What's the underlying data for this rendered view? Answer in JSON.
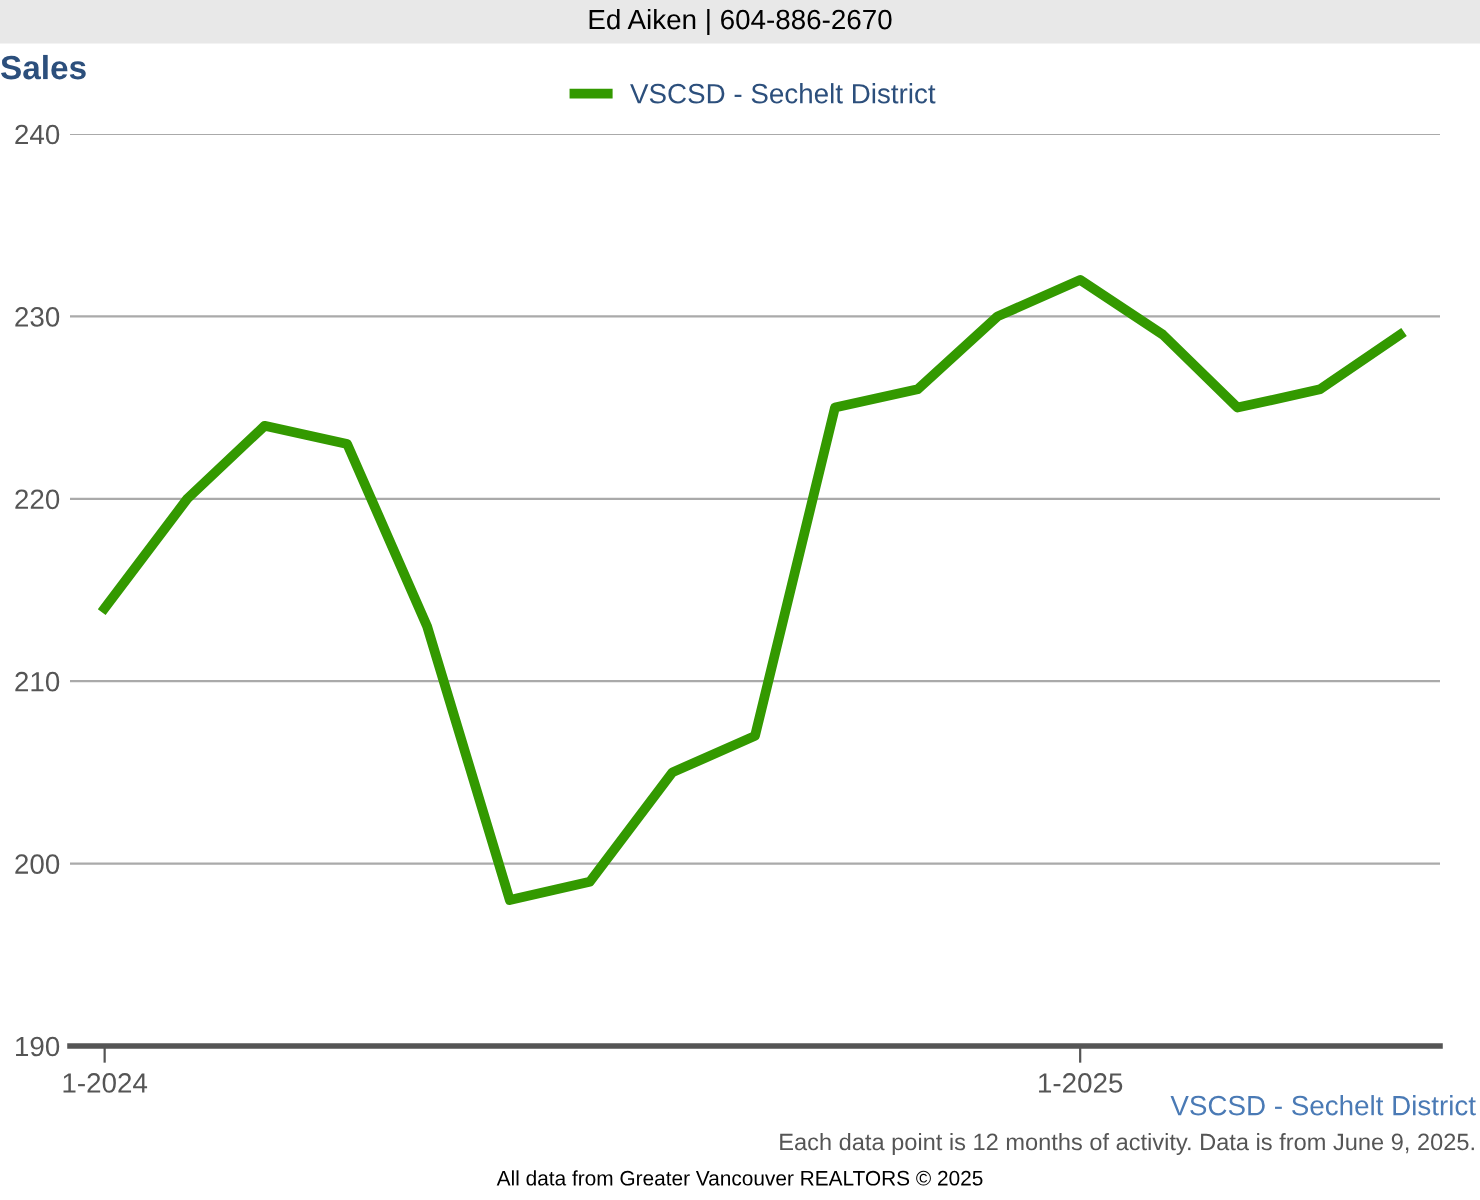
{
  "chart_data": {
    "type": "line",
    "title": "Sales",
    "x": [
      "2024-01",
      "2024-02",
      "2024-03",
      "2024-04",
      "2024-05",
      "2024-06",
      "2024-07",
      "2024-08",
      "2024-09",
      "2024-10",
      "2024-11",
      "2024-12",
      "2025-01",
      "2025-02",
      "2025-03",
      "2025-04",
      "2025-05"
    ],
    "series": [
      {
        "name": "VSCSD - Sechelt District",
        "color": "#339900",
        "values": [
          214,
          220,
          224,
          223,
          213,
          198,
          199,
          205,
          207,
          225,
          226,
          230,
          232,
          229,
          225,
          226,
          229
        ]
      }
    ],
    "xlim": [
      "2023-12-19",
      "2025-05-16"
    ],
    "xticks": [
      {
        "value": "2024-01",
        "label": "1-2024"
      },
      {
        "value": "2025-01",
        "label": "1-2025"
      }
    ],
    "ylim": [
      190,
      240
    ],
    "yticks": [
      190,
      200,
      210,
      220,
      230,
      240
    ],
    "grid": "y",
    "legend": "top",
    "marker": "none",
    "line_style": "solid",
    "annotations": [
      "Ed Aiken | 604-886-2670",
      "VSCSD - Sechelt District",
      "Each data point is 12 months of activity. Data is from June 9, 2025.",
      "All data from Greater Vancouver REALTORS © 2025"
    ]
  }
}
